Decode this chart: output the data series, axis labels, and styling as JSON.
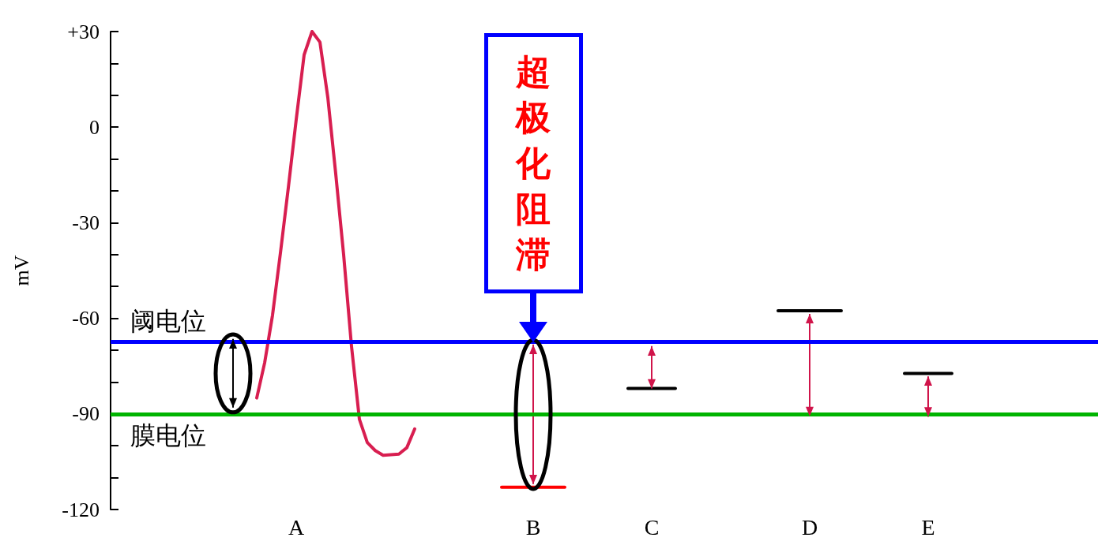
{
  "chart_data": {
    "type": "line",
    "ylabel": "mV",
    "categories": [
      null,
      null,
      null,
      null,
      null,
      null,
      null,
      null,
      null,
      null,
      null,
      null,
      null,
      null,
      null,
      null,
      null,
      null,
      null,
      null,
      null,
      null,
      null,
      "A",
      null,
      null,
      null,
      null,
      null,
      null,
      null,
      null,
      null,
      null,
      null,
      null,
      null,
      null,
      null,
      null,
      null,
      null,
      null,
      null,
      null,
      null,
      null,
      null,
      null,
      null,
      null,
      null,
      null,
      "B",
      null,
      null,
      null,
      null,
      null,
      null,
      null,
      null,
      null,
      null,
      null,
      null,
      null,
      null,
      "C",
      null,
      null,
      null,
      null,
      null,
      null,
      null,
      null,
      null,
      null,
      null,
      null,
      null,
      null,
      null,
      null,
      null,
      null,
      null,
      "D",
      null,
      null,
      null,
      null,
      null,
      null,
      null,
      null,
      null,
      null,
      null,
      null,
      null,
      null,
      "E",
      null,
      null,
      null,
      null,
      null,
      null,
      null,
      null,
      null,
      null,
      null,
      null,
      null,
      null,
      null,
      null,
      null,
      null,
      null,
      null,
      null
    ],
    "ylim": [
      -120,
      30
    ],
    "yticks": [
      -120,
      {
        "value": -110,
        "label": null
      },
      {
        "value": -100,
        "label": null
      },
      -90,
      {
        "value": -80,
        "label": null
      },
      {
        "value": -70,
        "label": null
      },
      -60,
      {
        "value": -50,
        "label": null
      },
      {
        "value": -40,
        "label": null
      },
      -30,
      {
        "value": -20,
        "label": null
      },
      {
        "value": -10,
        "label": null
      },
      0,
      {
        "value": 10,
        "label": null
      },
      {
        "value": 20,
        "label": null
      },
      {
        "value": 30,
        "label": "+30"
      }
    ],
    "grid": false,
    "marker": "none",
    "ref_lines": [
      {
        "axis": "y",
        "value": -67.4,
        "label": "阈电位",
        "color": "#0000ff"
      },
      {
        "axis": "y",
        "value": -90.2,
        "label": "膜电位",
        "color": "#00b400"
      }
    ],
    "annotations": [
      {
        "text": "超极化阻滞",
        "x": "B",
        "y": -67.5
      }
    ],
    "series": [
      {
        "color": "#d81e50",
        "values": [
          null,
          null,
          null,
          null,
          null,
          null,
          null,
          null,
          null,
          null,
          null,
          null,
          null,
          null,
          null,
          null,
          null,
          null,
          -85,
          -74,
          -59,
          -39.5,
          -19,
          2.4,
          22.7,
          30,
          26.7,
          9.3,
          -14.6,
          -40,
          -68.8,
          -91.7,
          -99,
          -101.5,
          -103,
          -102.8,
          -102.6,
          -100.6,
          -94.7,
          null,
          null,
          null,
          null,
          null,
          null,
          null,
          null,
          null,
          null,
          null,
          null,
          null,
          null,
          null,
          null,
          null,
          null,
          null,
          null,
          null,
          null,
          null,
          null,
          null,
          null,
          null,
          null,
          null,
          null,
          null,
          null,
          null,
          null,
          null,
          null,
          null,
          null,
          null,
          null,
          null,
          null,
          null,
          null,
          null,
          null,
          null,
          null,
          null,
          null,
          null,
          null,
          null,
          null,
          null,
          null,
          null,
          null,
          null,
          null,
          null,
          null,
          null,
          null,
          null,
          null,
          null,
          null,
          null,
          null,
          null,
          null,
          null,
          null,
          null,
          null,
          null,
          null,
          null,
          null,
          null,
          null,
          null,
          null,
          null,
          null
        ]
      },
      {
        "type": "bar",
        "values": [
          null,
          null,
          null,
          null,
          null,
          null,
          null,
          null,
          null,
          null,
          null,
          null,
          null,
          null,
          null,
          21.5,
          null,
          null,
          null,
          null,
          null,
          null,
          null,
          null,
          null,
          null,
          null,
          null,
          null,
          null,
          null,
          null,
          null,
          null,
          null,
          null,
          null,
          null,
          null,
          null,
          null,
          null,
          null,
          null,
          null,
          null,
          null,
          null,
          null,
          null,
          null,
          null,
          null,
          43.8,
          null,
          null,
          null,
          null,
          null,
          null,
          null,
          null,
          null,
          null,
          null,
          null,
          null,
          null,
          13.3,
          null,
          null,
          null,
          null,
          null,
          null,
          null,
          null,
          null,
          null,
          null,
          null,
          null,
          null,
          null,
          null,
          null,
          null,
          null,
          32.1,
          null,
          null,
          null,
          null,
          null,
          null,
          null,
          null,
          null,
          null,
          null,
          null,
          null,
          null,
          12.7,
          null,
          null,
          null,
          null,
          null,
          null,
          null,
          null,
          null,
          null,
          null,
          null,
          null,
          null,
          null,
          null,
          null,
          null,
          null,
          null,
          null
        ],
        "base": [
          null,
          null,
          null,
          null,
          null,
          null,
          null,
          null,
          null,
          null,
          null,
          null,
          null,
          null,
          null,
          -88,
          null,
          null,
          null,
          null,
          null,
          null,
          null,
          null,
          null,
          null,
          null,
          null,
          null,
          null,
          null,
          null,
          null,
          null,
          null,
          null,
          null,
          null,
          null,
          null,
          null,
          null,
          null,
          null,
          null,
          null,
          null,
          null,
          null,
          null,
          null,
          null,
          null,
          -112,
          null,
          null,
          null,
          null,
          null,
          null,
          null,
          null,
          null,
          null,
          null,
          null,
          null,
          null,
          -82,
          null,
          null,
          null,
          null,
          null,
          null,
          null,
          null,
          null,
          null,
          null,
          null,
          null,
          null,
          null,
          null,
          null,
          null,
          null,
          -90.7,
          null,
          null,
          null,
          null,
          null,
          null,
          null,
          null,
          null,
          null,
          null,
          null,
          null,
          null,
          -90.9,
          null,
          null,
          null,
          null,
          null,
          null,
          null,
          null,
          null,
          null,
          null,
          null,
          null,
          null,
          null,
          null,
          null,
          null,
          null,
          null,
          null
        ],
        "colors": [
          null,
          null,
          null,
          null,
          null,
          null,
          null,
          null,
          null,
          null,
          null,
          null,
          null,
          null,
          null,
          "#000000",
          null,
          null,
          null,
          null,
          null,
          null,
          null,
          null,
          null,
          null,
          null,
          null,
          null,
          null,
          null,
          null,
          null,
          null,
          null,
          null,
          null,
          null,
          null,
          null,
          null,
          null,
          null,
          null,
          null,
          null,
          null,
          null,
          null,
          null,
          null,
          null,
          null,
          "#d0144a",
          null,
          null,
          null,
          null,
          null,
          null,
          null,
          null,
          null,
          null,
          null,
          null,
          null,
          null,
          "#d0144a",
          null,
          null,
          null,
          null,
          null,
          null,
          null,
          null,
          null,
          null,
          null,
          null,
          null,
          null,
          null,
          null,
          null,
          null,
          null,
          "#d0144a",
          null,
          null,
          null,
          null,
          null,
          null,
          null,
          null,
          null,
          null,
          null,
          null,
          null,
          null,
          "#d0144a",
          null,
          null,
          null,
          null,
          null,
          null,
          null,
          null,
          null,
          null,
          null,
          null,
          null,
          null,
          null,
          null,
          null,
          null,
          null,
          null,
          null
        ]
      },
      {
        "type": "line",
        "color": "#ff0000",
        "values": [
          null,
          null,
          null,
          null,
          null,
          null,
          null,
          null,
          null,
          null,
          null,
          null,
          null,
          null,
          null,
          null,
          null,
          null,
          null,
          null,
          null,
          null,
          null,
          null,
          null,
          null,
          null,
          null,
          null,
          null,
          null,
          null,
          null,
          null,
          null,
          null,
          null,
          null,
          null,
          null,
          null,
          null,
          null,
          null,
          null,
          null,
          null,
          null,
          null,
          -113,
          -113,
          -113,
          -113,
          -113,
          -113,
          -113,
          -113,
          -113,
          null,
          null,
          null,
          null,
          null,
          null,
          null,
          null,
          null,
          null,
          null,
          null,
          null,
          null,
          null,
          null,
          null,
          null,
          null,
          null,
          null,
          null,
          null,
          null,
          null,
          null,
          null,
          null,
          null,
          null,
          null,
          null,
          null,
          null,
          null,
          null,
          null,
          null,
          null,
          null,
          null,
          null,
          null,
          null,
          null,
          null,
          null,
          null,
          null,
          null,
          null,
          null,
          null,
          null,
          null,
          null,
          null,
          null,
          null,
          null,
          null,
          null,
          null,
          null,
          null,
          null,
          null
        ]
      },
      {
        "type": "line",
        "color": "#000000",
        "values": [
          null,
          null,
          null,
          null,
          null,
          null,
          null,
          null,
          null,
          null,
          null,
          null,
          null,
          null,
          null,
          null,
          null,
          null,
          null,
          null,
          null,
          null,
          null,
          null,
          null,
          null,
          null,
          null,
          null,
          null,
          null,
          null,
          null,
          null,
          null,
          null,
          null,
          null,
          null,
          null,
          null,
          null,
          null,
          null,
          null,
          null,
          null,
          null,
          null,
          null,
          null,
          null,
          null,
          null,
          null,
          null,
          null,
          null,
          null,
          null,
          null,
          null,
          null,
          null,
          null,
          -82,
          -82,
          -82,
          -82,
          -82,
          -82,
          -82,
          null,
          null,
          null,
          null,
          null,
          null,
          null,
          null,
          null,
          null,
          null,
          null,
          -57.6,
          -57.6,
          -57.6,
          -57.6,
          -57.6,
          -57.6,
          -57.6,
          -57.6,
          -57.6,
          null,
          null,
          null,
          null,
          null,
          null,
          null,
          -77.3,
          -77.3,
          -77.3,
          -77.3,
          -77.3,
          -77.3,
          -77.3,
          null,
          null,
          null,
          null,
          null,
          null,
          null,
          null,
          null,
          null,
          null,
          null,
          null,
          null,
          null,
          null,
          null,
          null
        ]
      }
    ]
  }
}
